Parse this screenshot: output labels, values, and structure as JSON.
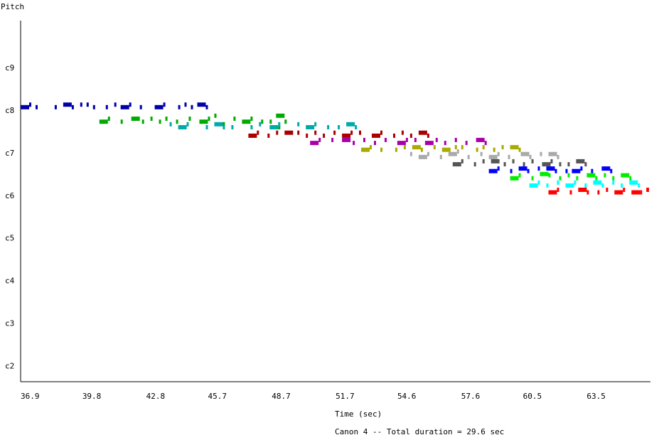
{
  "chart_data": {
    "type": "scatter",
    "ylabel": "Pitch",
    "xlabel": "Time (sec)",
    "caption": "Canon 4 -- Total duration = 29.6 sec",
    "x_ticks": [
      "36.9",
      "39.8",
      "42.8",
      "45.7",
      "48.7",
      "51.7",
      "54.6",
      "57.6",
      "60.5",
      "63.5"
    ],
    "y_ticks": [
      "c2",
      "c3",
      "c4",
      "c5",
      "c6",
      "c7",
      "c8",
      "c9"
    ],
    "xlim": [
      36.9,
      66.5
    ],
    "ylim": [
      1.75,
      10.0
    ],
    "grid": false,
    "series": [
      {
        "color": "#0000aa",
        "points": [
          {
            "t": 36.9,
            "d": 0.4,
            "p": 8.07
          },
          {
            "t": 37.3,
            "d": 0.1,
            "p": 8.13
          },
          {
            "t": 37.6,
            "d": 0.1,
            "p": 8.07
          },
          {
            "t": 38.5,
            "d": 0.1,
            "p": 8.07
          },
          {
            "t": 38.9,
            "d": 0.4,
            "p": 8.13
          },
          {
            "t": 39.3,
            "d": 0.1,
            "p": 8.07
          },
          {
            "t": 39.7,
            "d": 0.1,
            "p": 8.13
          },
          {
            "t": 40.0,
            "d": 0.1,
            "p": 8.13
          },
          {
            "t": 40.3,
            "d": 0.1,
            "p": 8.07
          }
        ]
      },
      {
        "color": "#0000aa",
        "points": [
          {
            "t": 40.9,
            "d": 0.1,
            "p": 8.07
          },
          {
            "t": 41.3,
            "d": 0.1,
            "p": 8.13
          },
          {
            "t": 41.6,
            "d": 0.4,
            "p": 8.07
          },
          {
            "t": 42.0,
            "d": 0.1,
            "p": 8.13
          },
          {
            "t": 42.5,
            "d": 0.1,
            "p": 8.07
          },
          {
            "t": 43.2,
            "d": 0.4,
            "p": 8.07
          },
          {
            "t": 43.6,
            "d": 0.1,
            "p": 8.13
          },
          {
            "t": 44.3,
            "d": 0.1,
            "p": 8.07
          },
          {
            "t": 44.6,
            "d": 0.1,
            "p": 8.13
          },
          {
            "t": 44.9,
            "d": 0.1,
            "p": 8.07
          },
          {
            "t": 45.2,
            "d": 0.4,
            "p": 8.13
          },
          {
            "t": 45.6,
            "d": 0.1,
            "p": 8.07
          }
        ]
      },
      {
        "color": "#00aa00",
        "points": [
          {
            "t": 40.6,
            "d": 0.4,
            "p": 7.73
          },
          {
            "t": 41.0,
            "d": 0.1,
            "p": 7.8
          },
          {
            "t": 41.6,
            "d": 0.1,
            "p": 7.73
          },
          {
            "t": 42.1,
            "d": 0.4,
            "p": 7.8
          },
          {
            "t": 42.6,
            "d": 0.1,
            "p": 7.73
          },
          {
            "t": 43.0,
            "d": 0.1,
            "p": 7.8
          },
          {
            "t": 43.4,
            "d": 0.1,
            "p": 7.73
          },
          {
            "t": 43.7,
            "d": 0.1,
            "p": 7.8
          },
          {
            "t": 44.2,
            "d": 0.1,
            "p": 7.73
          },
          {
            "t": 44.8,
            "d": 0.1,
            "p": 7.8
          },
          {
            "t": 45.3,
            "d": 0.4,
            "p": 7.73
          },
          {
            "t": 45.7,
            "d": 0.1,
            "p": 7.8
          },
          {
            "t": 46.0,
            "d": 0.1,
            "p": 7.87
          },
          {
            "t": 46.4,
            "d": 0.1,
            "p": 7.67
          },
          {
            "t": 46.9,
            "d": 0.1,
            "p": 7.8
          },
          {
            "t": 47.3,
            "d": 0.4,
            "p": 7.73
          },
          {
            "t": 47.7,
            "d": 0.1,
            "p": 7.8
          },
          {
            "t": 48.2,
            "d": 0.1,
            "p": 7.73
          },
          {
            "t": 48.6,
            "d": 0.1,
            "p": 7.73
          },
          {
            "t": 48.9,
            "d": 0.4,
            "p": 7.87
          },
          {
            "t": 49.3,
            "d": 0.1,
            "p": 7.73
          },
          {
            "t": 49.0,
            "d": 0.1,
            "p": 7.6
          }
        ]
      },
      {
        "color": "#00aaaa",
        "points": [
          {
            "t": 43.9,
            "d": 0.1,
            "p": 7.67
          },
          {
            "t": 44.3,
            "d": 0.4,
            "p": 7.6
          },
          {
            "t": 44.7,
            "d": 0.1,
            "p": 7.67
          },
          {
            "t": 45.6,
            "d": 0.1,
            "p": 7.6
          },
          {
            "t": 46.0,
            "d": 0.4,
            "p": 7.67
          },
          {
            "t": 46.4,
            "d": 0.1,
            "p": 7.6
          },
          {
            "t": 46.8,
            "d": 0.1,
            "p": 7.6
          },
          {
            "t": 47.7,
            "d": 0.1,
            "p": 7.6
          },
          {
            "t": 48.1,
            "d": 0.1,
            "p": 7.67
          },
          {
            "t": 48.6,
            "d": 0.4,
            "p": 7.6
          },
          {
            "t": 49.0,
            "d": 0.1,
            "p": 7.67
          },
          {
            "t": 49.9,
            "d": 0.1,
            "p": 7.67
          },
          {
            "t": 50.3,
            "d": 0.4,
            "p": 7.6
          },
          {
            "t": 50.7,
            "d": 0.1,
            "p": 7.67
          },
          {
            "t": 51.3,
            "d": 0.1,
            "p": 7.6
          },
          {
            "t": 51.8,
            "d": 0.1,
            "p": 7.6
          },
          {
            "t": 52.2,
            "d": 0.4,
            "p": 7.67
          },
          {
            "t": 52.6,
            "d": 0.1,
            "p": 7.6
          }
        ]
      },
      {
        "color": "#aa0000",
        "points": [
          {
            "t": 47.6,
            "d": 0.4,
            "p": 7.4
          },
          {
            "t": 48.0,
            "d": 0.1,
            "p": 7.47
          },
          {
            "t": 48.5,
            "d": 0.1,
            "p": 7.4
          },
          {
            "t": 48.9,
            "d": 0.1,
            "p": 7.47
          },
          {
            "t": 49.3,
            "d": 0.4,
            "p": 7.47
          },
          {
            "t": 49.9,
            "d": 0.1,
            "p": 7.47
          },
          {
            "t": 50.3,
            "d": 0.1,
            "p": 7.4
          },
          {
            "t": 50.7,
            "d": 0.1,
            "p": 7.47
          },
          {
            "t": 51.1,
            "d": 0.1,
            "p": 7.4
          },
          {
            "t": 51.6,
            "d": 0.1,
            "p": 7.47
          },
          {
            "t": 52.0,
            "d": 0.4,
            "p": 7.4
          },
          {
            "t": 52.4,
            "d": 0.1,
            "p": 7.47
          },
          {
            "t": 52.8,
            "d": 0.1,
            "p": 7.47
          },
          {
            "t": 53.4,
            "d": 0.4,
            "p": 7.4
          },
          {
            "t": 53.8,
            "d": 0.1,
            "p": 7.47
          },
          {
            "t": 54.4,
            "d": 0.1,
            "p": 7.4
          },
          {
            "t": 54.8,
            "d": 0.1,
            "p": 7.47
          },
          {
            "t": 55.2,
            "d": 0.1,
            "p": 7.4
          },
          {
            "t": 55.6,
            "d": 0.4,
            "p": 7.47
          },
          {
            "t": 56.0,
            "d": 0.1,
            "p": 7.4
          }
        ]
      },
      {
        "color": "#aa00aa",
        "points": [
          {
            "t": 50.5,
            "d": 0.4,
            "p": 7.23
          },
          {
            "t": 50.9,
            "d": 0.1,
            "p": 7.3
          },
          {
            "t": 51.5,
            "d": 0.1,
            "p": 7.3
          },
          {
            "t": 52.0,
            "d": 0.4,
            "p": 7.3
          },
          {
            "t": 52.5,
            "d": 0.1,
            "p": 7.23
          },
          {
            "t": 53.0,
            "d": 0.1,
            "p": 7.3
          },
          {
            "t": 53.5,
            "d": 0.1,
            "p": 7.23
          },
          {
            "t": 54.0,
            "d": 0.1,
            "p": 7.3
          },
          {
            "t": 54.6,
            "d": 0.4,
            "p": 7.23
          },
          {
            "t": 55.0,
            "d": 0.1,
            "p": 7.3
          },
          {
            "t": 55.4,
            "d": 0.1,
            "p": 7.3
          },
          {
            "t": 55.9,
            "d": 0.4,
            "p": 7.23
          },
          {
            "t": 56.4,
            "d": 0.1,
            "p": 7.3
          },
          {
            "t": 56.8,
            "d": 0.1,
            "p": 7.23
          },
          {
            "t": 57.3,
            "d": 0.1,
            "p": 7.3
          },
          {
            "t": 57.8,
            "d": 0.1,
            "p": 7.23
          },
          {
            "t": 58.3,
            "d": 0.4,
            "p": 7.3
          },
          {
            "t": 58.7,
            "d": 0.1,
            "p": 7.23
          }
        ]
      },
      {
        "color": "#aaaa00",
        "points": [
          {
            "t": 52.9,
            "d": 0.4,
            "p": 7.07
          },
          {
            "t": 53.3,
            "d": 0.1,
            "p": 7.13
          },
          {
            "t": 53.8,
            "d": 0.1,
            "p": 7.07
          },
          {
            "t": 54.5,
            "d": 0.1,
            "p": 7.07
          },
          {
            "t": 54.9,
            "d": 0.1,
            "p": 7.13
          },
          {
            "t": 55.3,
            "d": 0.4,
            "p": 7.13
          },
          {
            "t": 55.7,
            "d": 0.1,
            "p": 7.07
          },
          {
            "t": 56.3,
            "d": 0.1,
            "p": 7.13
          },
          {
            "t": 56.7,
            "d": 0.4,
            "p": 7.07
          },
          {
            "t": 57.3,
            "d": 0.1,
            "p": 7.13
          },
          {
            "t": 57.6,
            "d": 0.1,
            "p": 7.13
          },
          {
            "t": 58.3,
            "d": 0.1,
            "p": 7.07
          },
          {
            "t": 58.6,
            "d": 0.1,
            "p": 7.13
          },
          {
            "t": 59.1,
            "d": 0.1,
            "p": 7.07
          },
          {
            "t": 59.5,
            "d": 0.1,
            "p": 7.13
          },
          {
            "t": 59.9,
            "d": 0.4,
            "p": 7.13
          },
          {
            "t": 60.3,
            "d": 0.1,
            "p": 7.07
          }
        ]
      },
      {
        "color": "#aaaaaa",
        "points": [
          {
            "t": 55.2,
            "d": 0.1,
            "p": 6.97
          },
          {
            "t": 55.6,
            "d": 0.4,
            "p": 6.9
          },
          {
            "t": 56.0,
            "d": 0.1,
            "p": 6.97
          },
          {
            "t": 56.6,
            "d": 0.1,
            "p": 6.9
          },
          {
            "t": 57.0,
            "d": 0.4,
            "p": 6.97
          },
          {
            "t": 57.4,
            "d": 0.1,
            "p": 7.03
          },
          {
            "t": 57.9,
            "d": 0.1,
            "p": 6.9
          },
          {
            "t": 58.5,
            "d": 0.1,
            "p": 6.97
          },
          {
            "t": 58.9,
            "d": 0.4,
            "p": 6.9
          },
          {
            "t": 59.3,
            "d": 0.1,
            "p": 6.97
          },
          {
            "t": 59.8,
            "d": 0.1,
            "p": 6.9
          },
          {
            "t": 60.4,
            "d": 0.4,
            "p": 6.97
          },
          {
            "t": 60.8,
            "d": 0.1,
            "p": 6.9
          },
          {
            "t": 61.3,
            "d": 0.1,
            "p": 6.97
          },
          {
            "t": 61.7,
            "d": 0.4,
            "p": 6.97
          },
          {
            "t": 62.1,
            "d": 0.1,
            "p": 6.9
          }
        ]
      },
      {
        "color": "#555555",
        "points": [
          {
            "t": 57.2,
            "d": 0.4,
            "p": 6.73
          },
          {
            "t": 57.6,
            "d": 0.1,
            "p": 6.8
          },
          {
            "t": 58.2,
            "d": 0.1,
            "p": 6.73
          },
          {
            "t": 58.6,
            "d": 0.1,
            "p": 6.8
          },
          {
            "t": 59.0,
            "d": 0.4,
            "p": 6.8
          },
          {
            "t": 59.6,
            "d": 0.1,
            "p": 6.73
          },
          {
            "t": 60.0,
            "d": 0.1,
            "p": 6.8
          },
          {
            "t": 60.5,
            "d": 0.1,
            "p": 6.73
          },
          {
            "t": 60.9,
            "d": 0.1,
            "p": 6.8
          },
          {
            "t": 61.4,
            "d": 0.4,
            "p": 6.73
          },
          {
            "t": 61.8,
            "d": 0.1,
            "p": 6.8
          },
          {
            "t": 62.2,
            "d": 0.1,
            "p": 6.73
          },
          {
            "t": 62.6,
            "d": 0.1,
            "p": 6.73
          },
          {
            "t": 63.0,
            "d": 0.4,
            "p": 6.8
          },
          {
            "t": 63.4,
            "d": 0.1,
            "p": 6.73
          }
        ]
      },
      {
        "color": "#0000ff",
        "points": [
          {
            "t": 58.9,
            "d": 0.4,
            "p": 6.57
          },
          {
            "t": 59.3,
            "d": 0.1,
            "p": 6.63
          },
          {
            "t": 59.9,
            "d": 0.1,
            "p": 6.57
          },
          {
            "t": 60.3,
            "d": 0.4,
            "p": 6.63
          },
          {
            "t": 60.7,
            "d": 0.1,
            "p": 6.57
          },
          {
            "t": 61.2,
            "d": 0.1,
            "p": 6.63
          },
          {
            "t": 61.6,
            "d": 0.4,
            "p": 6.63
          },
          {
            "t": 62.0,
            "d": 0.1,
            "p": 6.57
          },
          {
            "t": 62.5,
            "d": 0.1,
            "p": 6.57
          },
          {
            "t": 62.8,
            "d": 0.4,
            "p": 6.57
          },
          {
            "t": 63.2,
            "d": 0.1,
            "p": 6.63
          },
          {
            "t": 63.7,
            "d": 0.1,
            "p": 6.57
          },
          {
            "t": 64.2,
            "d": 0.4,
            "p": 6.63
          },
          {
            "t": 64.6,
            "d": 0.1,
            "p": 6.57
          }
        ]
      },
      {
        "color": "#00ee00",
        "points": [
          {
            "t": 59.9,
            "d": 0.4,
            "p": 6.4
          },
          {
            "t": 60.3,
            "d": 0.1,
            "p": 6.47
          },
          {
            "t": 60.9,
            "d": 0.1,
            "p": 6.4
          },
          {
            "t": 61.3,
            "d": 0.4,
            "p": 6.5
          },
          {
            "t": 61.7,
            "d": 0.1,
            "p": 6.47
          },
          {
            "t": 62.2,
            "d": 0.1,
            "p": 6.4
          },
          {
            "t": 62.6,
            "d": 0.1,
            "p": 6.47
          },
          {
            "t": 63.0,
            "d": 0.1,
            "p": 6.4
          },
          {
            "t": 63.5,
            "d": 0.4,
            "p": 6.47
          },
          {
            "t": 63.9,
            "d": 0.1,
            "p": 6.4
          },
          {
            "t": 64.3,
            "d": 0.1,
            "p": 6.47
          },
          {
            "t": 64.7,
            "d": 0.1,
            "p": 6.4
          },
          {
            "t": 65.1,
            "d": 0.4,
            "p": 6.47
          },
          {
            "t": 65.5,
            "d": 0.1,
            "p": 6.4
          }
        ]
      },
      {
        "color": "#00ffff",
        "points": [
          {
            "t": 60.8,
            "d": 0.4,
            "p": 6.23
          },
          {
            "t": 61.2,
            "d": 0.1,
            "p": 6.3
          },
          {
            "t": 61.6,
            "d": 0.1,
            "p": 6.23
          },
          {
            "t": 62.1,
            "d": 0.1,
            "p": 6.3
          },
          {
            "t": 62.5,
            "d": 0.4,
            "p": 6.23
          },
          {
            "t": 62.9,
            "d": 0.1,
            "p": 6.3
          },
          {
            "t": 63.4,
            "d": 0.1,
            "p": 6.23
          },
          {
            "t": 63.8,
            "d": 0.4,
            "p": 6.3
          },
          {
            "t": 64.2,
            "d": 0.1,
            "p": 6.23
          },
          {
            "t": 64.7,
            "d": 0.1,
            "p": 6.3
          },
          {
            "t": 65.1,
            "d": 0.1,
            "p": 6.23
          },
          {
            "t": 65.5,
            "d": 0.4,
            "p": 6.3
          },
          {
            "t": 65.9,
            "d": 0.1,
            "p": 6.23
          }
        ]
      },
      {
        "color": "#ff0000",
        "points": [
          {
            "t": 61.7,
            "d": 0.4,
            "p": 6.07
          },
          {
            "t": 62.1,
            "d": 0.1,
            "p": 6.13
          },
          {
            "t": 62.7,
            "d": 0.1,
            "p": 6.07
          },
          {
            "t": 63.1,
            "d": 0.4,
            "p": 6.13
          },
          {
            "t": 63.5,
            "d": 0.1,
            "p": 6.07
          },
          {
            "t": 64.0,
            "d": 0.1,
            "p": 6.07
          },
          {
            "t": 64.4,
            "d": 0.1,
            "p": 6.13
          },
          {
            "t": 64.8,
            "d": 0.4,
            "p": 6.07
          },
          {
            "t": 65.2,
            "d": 0.1,
            "p": 6.13
          },
          {
            "t": 65.6,
            "d": 0.4,
            "p": 6.07
          },
          {
            "t": 66.0,
            "d": 0.1,
            "p": 6.07
          },
          {
            "t": 66.3,
            "d": 0.3,
            "p": 6.13
          }
        ]
      }
    ]
  }
}
